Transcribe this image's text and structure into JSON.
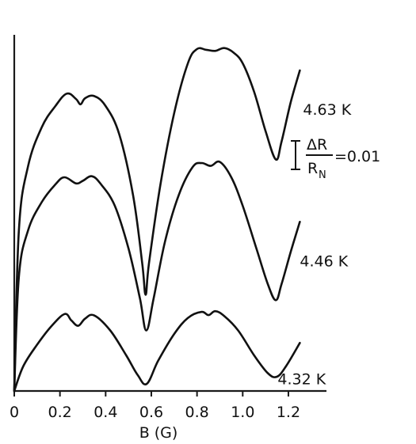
{
  "chart_data": {
    "type": "line",
    "title": "",
    "xlabel": "B (G)",
    "ylabel": "",
    "xlim": [
      0,
      1.4
    ],
    "x_ticks": [
      "0",
      "0.2",
      "0.4",
      "0.6",
      "0.8",
      "1.0",
      "1.2"
    ],
    "x_tick_values": [
      0,
      0.2,
      0.4,
      0.6,
      0.8,
      1.0,
      1.2
    ],
    "y_units": "relative resistance (arbitrary offset)",
    "ylim": [
      0,
      1
    ],
    "grid": false,
    "legend": "none; series labelled directly at curve ends",
    "scale_bar": {
      "numerator": "ΔR",
      "denominator": "R",
      "denominator_subscript": "N",
      "value_text": "=0.01"
    },
    "series": [
      {
        "name": "4.63 K",
        "x": [
          0.0,
          0.02,
          0.06,
          0.12,
          0.18,
          0.23,
          0.27,
          0.29,
          0.31,
          0.35,
          0.4,
          0.46,
          0.52,
          0.56,
          0.575,
          0.59,
          0.64,
          0.7,
          0.76,
          0.8,
          0.84,
          0.88,
          0.92,
          0.96,
          1.0,
          1.05,
          1.1,
          1.145,
          1.17,
          1.21,
          1.25
        ],
        "y": [
          0.0,
          0.45,
          0.63,
          0.74,
          0.8,
          0.835,
          0.82,
          0.805,
          0.822,
          0.828,
          0.8,
          0.72,
          0.55,
          0.36,
          0.27,
          0.36,
          0.58,
          0.78,
          0.92,
          0.96,
          0.958,
          0.955,
          0.963,
          0.95,
          0.92,
          0.84,
          0.73,
          0.65,
          0.7,
          0.81,
          0.9
        ]
      },
      {
        "name": "4.46 K",
        "x": [
          0.0,
          0.02,
          0.06,
          0.12,
          0.18,
          0.22,
          0.27,
          0.3,
          0.34,
          0.38,
          0.44,
          0.5,
          0.55,
          0.578,
          0.61,
          0.66,
          0.72,
          0.78,
          0.82,
          0.86,
          0.9,
          0.95,
          1.0,
          1.06,
          1.11,
          1.145,
          1.17,
          1.21,
          1.25
        ],
        "y": [
          0.0,
          0.32,
          0.45,
          0.53,
          0.58,
          0.6,
          0.583,
          0.59,
          0.603,
          0.58,
          0.52,
          0.4,
          0.26,
          0.17,
          0.26,
          0.42,
          0.55,
          0.628,
          0.64,
          0.632,
          0.643,
          0.6,
          0.52,
          0.4,
          0.3,
          0.255,
          0.3,
          0.39,
          0.475
        ]
      },
      {
        "name": "4.32 K",
        "x": [
          0.0,
          0.04,
          0.1,
          0.16,
          0.22,
          0.25,
          0.28,
          0.31,
          0.35,
          0.42,
          0.49,
          0.54,
          0.58,
          0.63,
          0.7,
          0.76,
          0.82,
          0.85,
          0.88,
          0.92,
          0.98,
          1.05,
          1.11,
          1.15,
          1.19,
          1.25
        ],
        "y": [
          0.0,
          0.07,
          0.13,
          0.18,
          0.216,
          0.198,
          0.183,
          0.203,
          0.212,
          0.17,
          0.1,
          0.045,
          0.02,
          0.085,
          0.16,
          0.205,
          0.222,
          0.213,
          0.224,
          0.21,
          0.17,
          0.1,
          0.05,
          0.04,
          0.07,
          0.135
        ]
      }
    ]
  }
}
